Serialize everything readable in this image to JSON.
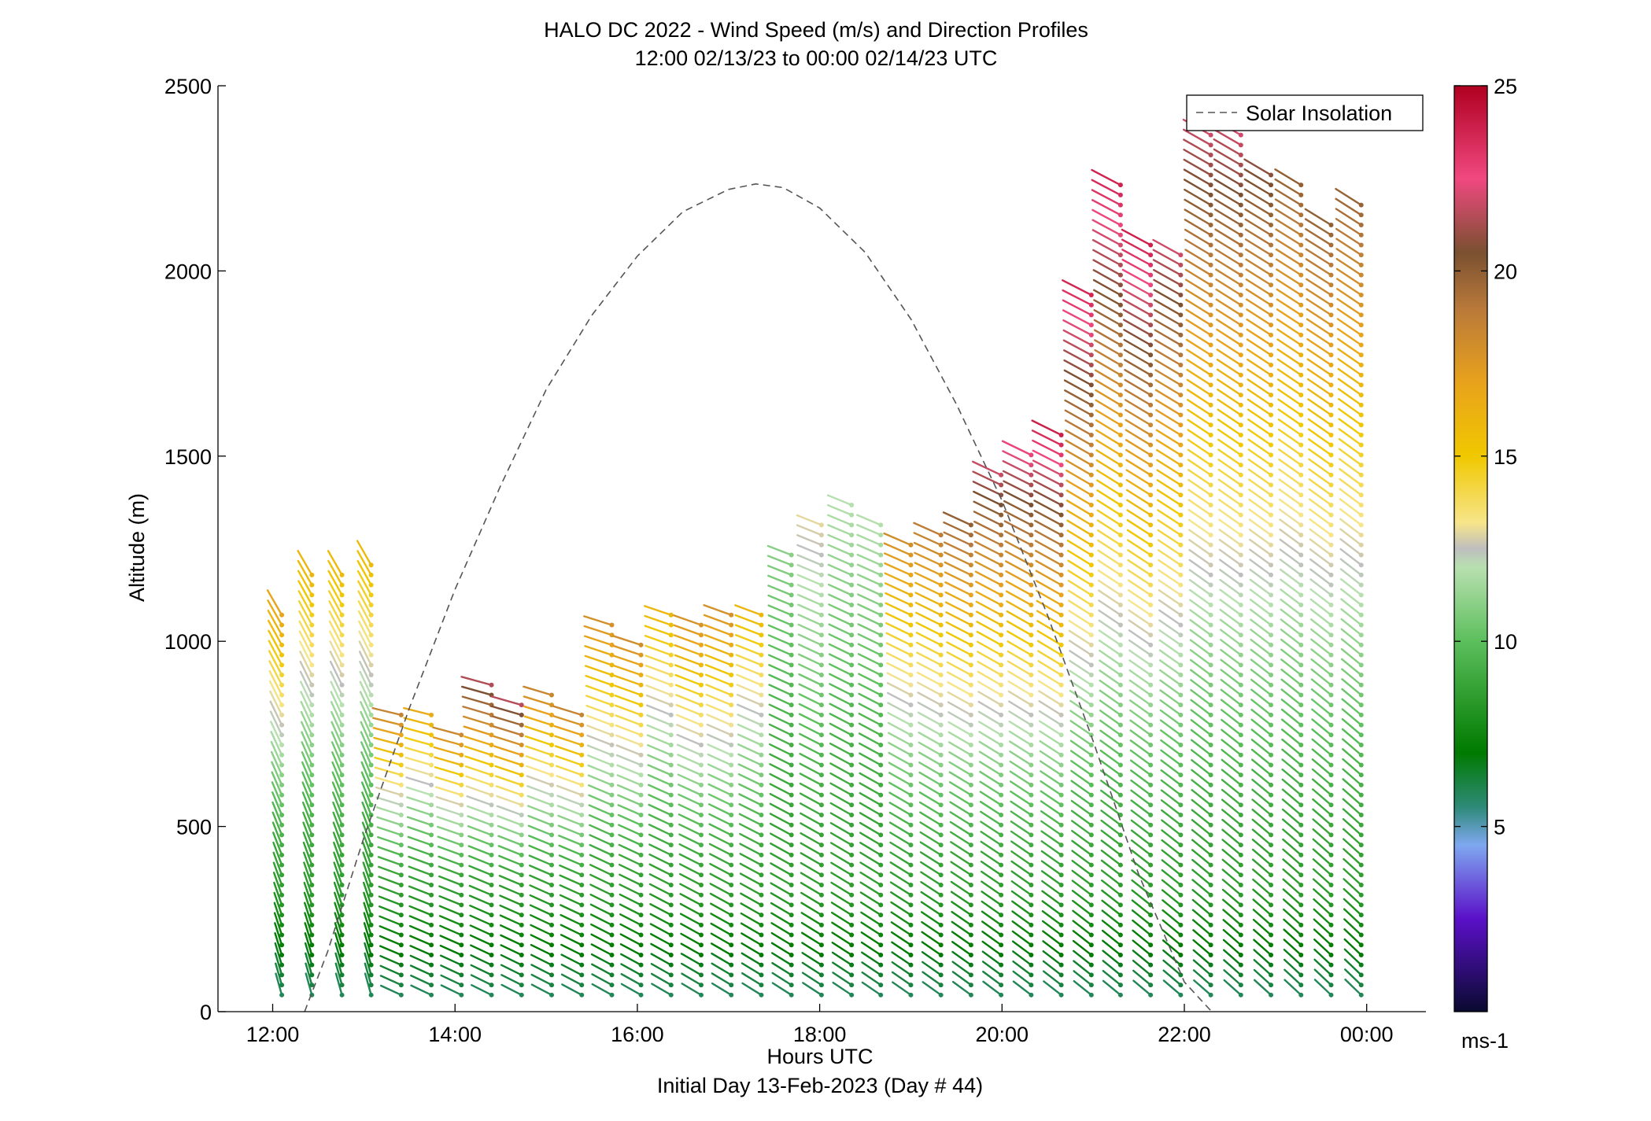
{
  "title_line1": "HALO DC 2022 - Wind Speed (m/s) and Direction Profiles",
  "title_line2": "12:00 02/13/23 to 00:00 02/14/23  UTC",
  "xlabel": "Hours UTC",
  "xlabel2": "Initial Day 13-Feb-2023 (Day # 44)",
  "ylabel": "Altitude (m)",
  "colorbar_unit": "ms-1",
  "legend_label": "Solar Insolation",
  "chart_data": {
    "type": "scatter",
    "subtype": "wind-barb profiles",
    "x_unit": "hours UTC",
    "y_unit": "m",
    "xlim": [
      11.4,
      24.65
    ],
    "ylim": [
      0,
      2500
    ],
    "x_ticks": [
      12,
      14,
      16,
      18,
      20,
      22,
      24
    ],
    "x_tick_labels": [
      "12:00",
      "14:00",
      "16:00",
      "18:00",
      "20:00",
      "22:00",
      "00:00"
    ],
    "y_ticks": [
      0,
      500,
      1000,
      1500,
      2000,
      2500
    ],
    "y_tick_labels": [
      "0",
      "500",
      "1000",
      "1500",
      "2000",
      "2500"
    ],
    "colorbar": {
      "range": [
        0,
        25
      ],
      "ticks": [
        5,
        10,
        15,
        20,
        25
      ],
      "tick_labels": [
        "5",
        "10",
        "15",
        "20",
        "25"
      ],
      "stops": [
        {
          "v": 0,
          "c": "#0a0a30"
        },
        {
          "v": 2.5,
          "c": "#5a10c8"
        },
        {
          "v": 4.5,
          "c": "#7fa8f0"
        },
        {
          "v": 5.5,
          "c": "#2f8a7a"
        },
        {
          "v": 7,
          "c": "#007a00"
        },
        {
          "v": 10,
          "c": "#5cbf5c"
        },
        {
          "v": 12,
          "c": "#b8e0b0"
        },
        {
          "v": 12.5,
          "c": "#bebebe"
        },
        {
          "v": 13.2,
          "c": "#f7e58a"
        },
        {
          "v": 15,
          "c": "#f0c800"
        },
        {
          "v": 17,
          "c": "#e8a21c"
        },
        {
          "v": 19,
          "c": "#b8793a"
        },
        {
          "v": 20.5,
          "c": "#7a5030"
        },
        {
          "v": 22.5,
          "c": "#f04880"
        },
        {
          "v": 25,
          "c": "#b00020"
        }
      ]
    },
    "solar_insolation_curve": {
      "style": "dashed gray",
      "x": [
        12.35,
        12.6,
        13.0,
        13.5,
        14.0,
        14.5,
        15.0,
        15.5,
        16.0,
        16.5,
        17.0,
        17.3,
        17.6,
        18.0,
        18.5,
        19.0,
        19.5,
        20.0,
        20.5,
        21.0,
        21.5,
        22.0,
        22.3
      ],
      "y": [
        0,
        160,
        470,
        820,
        1140,
        1420,
        1680,
        1880,
        2040,
        2160,
        2220,
        2235,
        2225,
        2170,
        2050,
        1870,
        1640,
        1380,
        1070,
        730,
        370,
        80,
        0
      ]
    },
    "profiles": [
      {
        "t": 12.1,
        "top": 1080,
        "hi": 17
      },
      {
        "t": 12.43,
        "top": 1180,
        "hi": 16
      },
      {
        "t": 12.76,
        "top": 1200,
        "hi": 16
      },
      {
        "t": 13.08,
        "top": 1230,
        "hi": 16
      },
      {
        "t": 13.41,
        "top": 820,
        "hi": 19
      },
      {
        "t": 13.74,
        "top": 820,
        "hi": 17
      },
      {
        "t": 14.07,
        "top": 770,
        "hi": 19
      },
      {
        "t": 14.4,
        "top": 900,
        "hi": 22
      },
      {
        "t": 14.73,
        "top": 840,
        "hi": 22
      },
      {
        "t": 15.06,
        "top": 880,
        "hi": 19
      },
      {
        "t": 15.39,
        "top": 820,
        "hi": 19
      },
      {
        "t": 15.72,
        "top": 1050,
        "hi": 18
      },
      {
        "t": 16.04,
        "top": 990,
        "hi": 18
      },
      {
        "t": 16.37,
        "top": 1080,
        "hi": 16
      },
      {
        "t": 16.7,
        "top": 1060,
        "hi": 18
      },
      {
        "t": 17.03,
        "top": 1080,
        "hi": 18
      },
      {
        "t": 17.36,
        "top": 1080,
        "hi": 16
      },
      {
        "t": 17.69,
        "top": 1240,
        "hi": 11
      },
      {
        "t": 18.02,
        "top": 1320,
        "hi": 13
      },
      {
        "t": 18.35,
        "top": 1380,
        "hi": 12
      },
      {
        "t": 18.67,
        "top": 1330,
        "hi": 12
      },
      {
        "t": 19.0,
        "top": 1260,
        "hi": 18
      },
      {
        "t": 19.33,
        "top": 1300,
        "hi": 19
      },
      {
        "t": 19.66,
        "top": 1320,
        "hi": 20
      },
      {
        "t": 19.99,
        "top": 1460,
        "hi": 22
      },
      {
        "t": 20.32,
        "top": 1520,
        "hi": 23
      },
      {
        "t": 20.65,
        "top": 1560,
        "hi": 24
      },
      {
        "t": 20.98,
        "top": 1960,
        "hi": 24
      },
      {
        "t": 21.3,
        "top": 2250,
        "hi": 24
      },
      {
        "t": 21.63,
        "top": 2080,
        "hi": 24
      },
      {
        "t": 21.96,
        "top": 2050,
        "hi": 22
      },
      {
        "t": 22.29,
        "top": 2380,
        "hi": 22
      },
      {
        "t": 22.62,
        "top": 2370,
        "hi": 22
      },
      {
        "t": 22.95,
        "top": 2280,
        "hi": 21
      },
      {
        "t": 23.28,
        "top": 2240,
        "hi": 20
      },
      {
        "t": 23.61,
        "top": 2130,
        "hi": 20
      },
      {
        "t": 23.94,
        "top": 2200,
        "hi": 20
      }
    ]
  }
}
